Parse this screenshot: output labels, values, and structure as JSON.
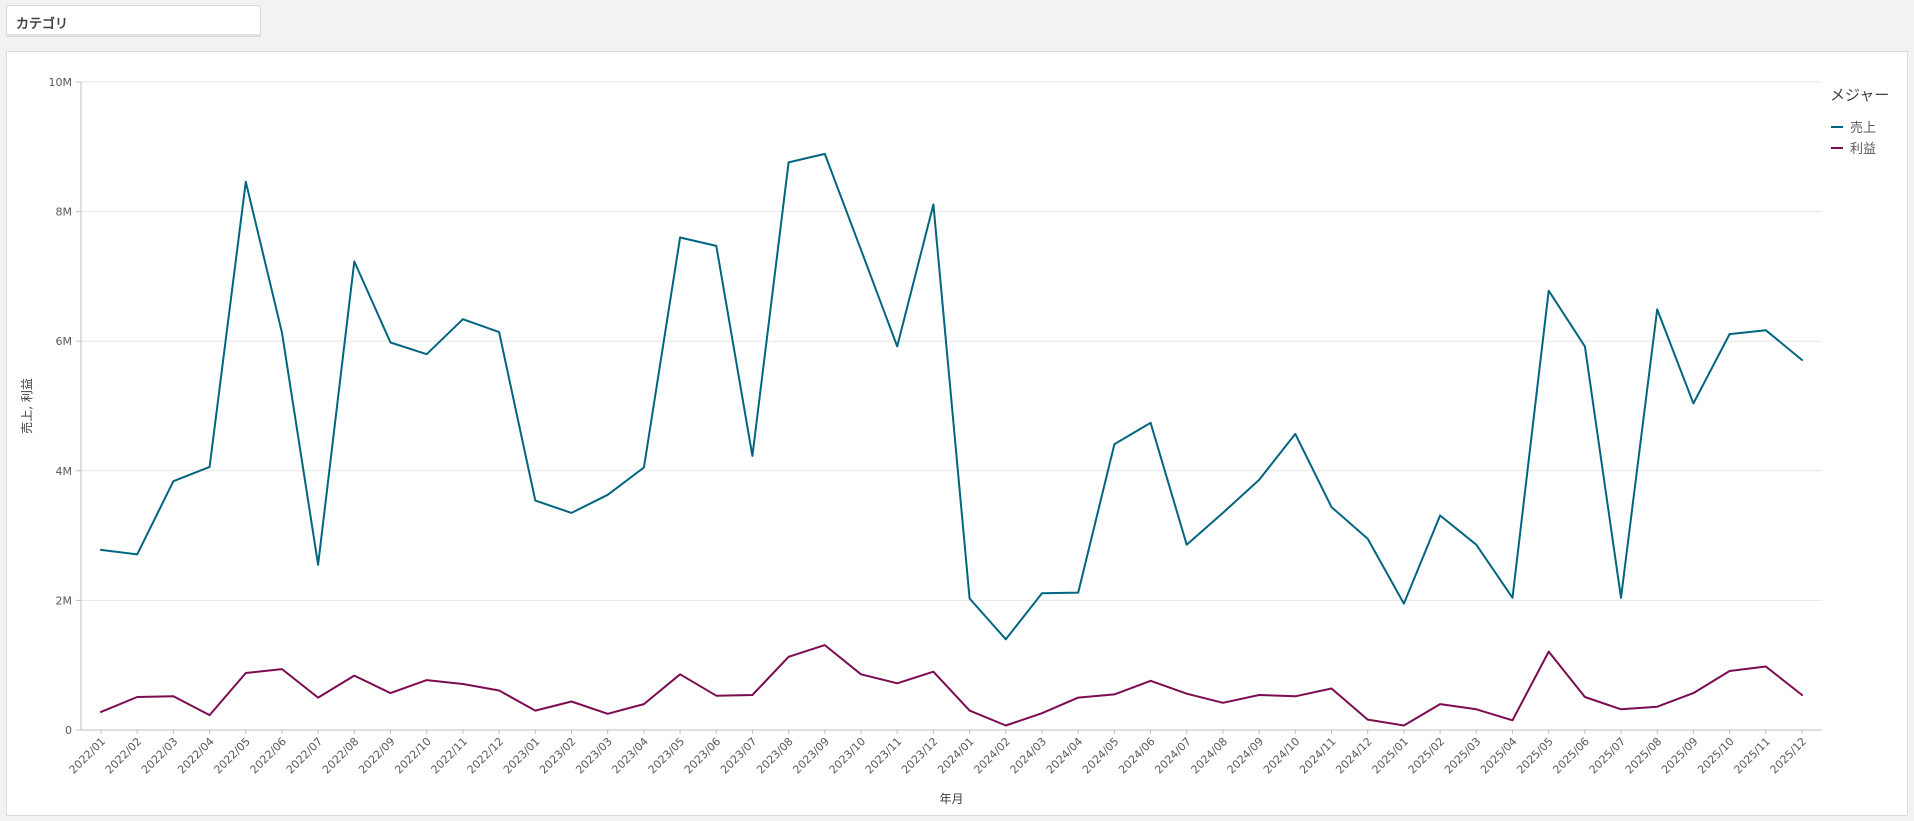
{
  "filter": {
    "label": "カテゴリ"
  },
  "colors": {
    "sales": "#006580",
    "profit": "#7b0c50",
    "grid": "#e6e6e6",
    "axis": "#bfbfbf"
  },
  "chart_data": {
    "type": "line",
    "title": "",
    "xlabel": "年月",
    "ylabel": "売上, 利益",
    "ylim": [
      0,
      10000000
    ],
    "yticks": [
      {
        "value": 0,
        "label": "0"
      },
      {
        "value": 2000000,
        "label": "2M"
      },
      {
        "value": 4000000,
        "label": "4M"
      },
      {
        "value": 6000000,
        "label": "6M"
      },
      {
        "value": 8000000,
        "label": "8M"
      },
      {
        "value": 10000000,
        "label": "10M"
      }
    ],
    "grid": true,
    "legend": {
      "title": "メジャー",
      "position": "top-right"
    },
    "categories": [
      "2022/01",
      "2022/02",
      "2022/03",
      "2022/04",
      "2022/05",
      "2022/06",
      "2022/07",
      "2022/08",
      "2022/09",
      "2022/10",
      "2022/11",
      "2022/12",
      "2023/01",
      "2023/02",
      "2023/03",
      "2023/04",
      "2023/05",
      "2023/06",
      "2023/07",
      "2023/08",
      "2023/09",
      "2023/10",
      "2023/11",
      "2023/12",
      "2024/01",
      "2024/02",
      "2024/03",
      "2024/04",
      "2024/05",
      "2024/06",
      "2024/07",
      "2024/08",
      "2024/09",
      "2024/10",
      "2024/11",
      "2024/12",
      "2025/01",
      "2025/02",
      "2025/03",
      "2025/04",
      "2025/05",
      "2025/06",
      "2025/07",
      "2025/08",
      "2025/09",
      "2025/10",
      "2025/11",
      "2025/12"
    ],
    "series": [
      {
        "name": "売上",
        "color": "#006580",
        "values": [
          2780000,
          2710000,
          3840000,
          4060000,
          8460000,
          6130000,
          2550000,
          7230000,
          5980000,
          5800000,
          6340000,
          6140000,
          3540000,
          3350000,
          3630000,
          4050000,
          7600000,
          7470000,
          4230000,
          8760000,
          8890000,
          7410000,
          5920000,
          8110000,
          2030000,
          1400000,
          2110000,
          2120000,
          4410000,
          4740000,
          2860000,
          3350000,
          3860000,
          4570000,
          3440000,
          2950000,
          1950000,
          3310000,
          2860000,
          2040000,
          6780000,
          5920000,
          2040000,
          6490000,
          5040000,
          6110000,
          6170000,
          5710000
        ]
      },
      {
        "name": "利益",
        "color": "#7b0c50",
        "values": [
          280000,
          510000,
          520000,
          230000,
          880000,
          940000,
          500000,
          840000,
          570000,
          770000,
          710000,
          610000,
          300000,
          440000,
          250000,
          400000,
          860000,
          530000,
          540000,
          1130000,
          1310000,
          860000,
          720000,
          900000,
          300000,
          70000,
          260000,
          500000,
          550000,
          760000,
          560000,
          420000,
          540000,
          520000,
          640000,
          160000,
          70000,
          400000,
          320000,
          150000,
          1210000,
          510000,
          320000,
          360000,
          570000,
          910000,
          980000,
          540000
        ]
      }
    ]
  }
}
